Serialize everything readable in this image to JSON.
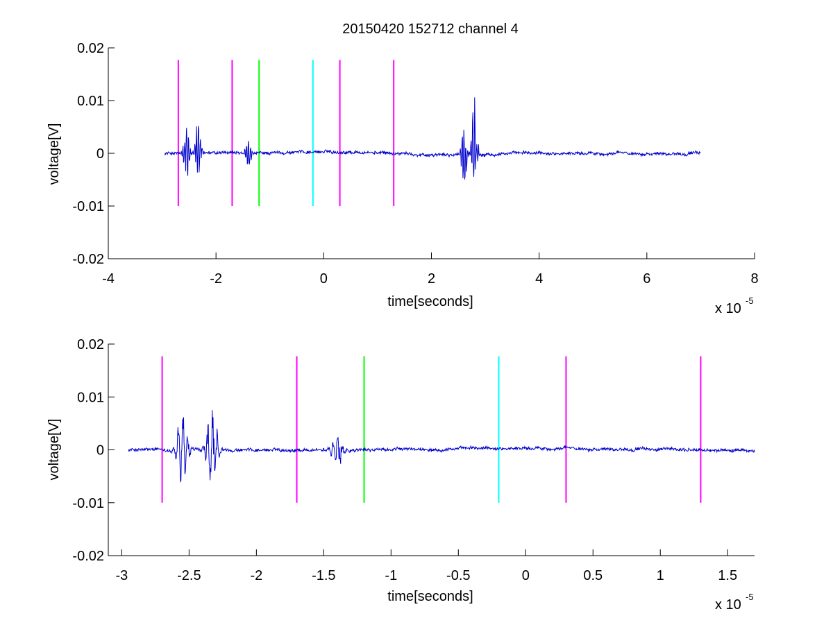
{
  "figure": {
    "title": "20150420 152712 channel 4",
    "background": "#ffffff"
  },
  "chart_data": [
    {
      "type": "line",
      "title": "20150420 152712 channel 4",
      "xlabel": "time[seconds]",
      "ylabel": "voltage[V]",
      "x_exponent_base": "x 10",
      "x_exponent_power": "-5",
      "xlim": [
        -4,
        8
      ],
      "ylim": [
        -0.02,
        0.02
      ],
      "xticks": [
        -4,
        -2,
        0,
        2,
        4,
        6,
        8
      ],
      "xtick_labels": [
        "-4",
        "-2",
        "0",
        "2",
        "4",
        "6",
        "8"
      ],
      "yticks": [
        -0.02,
        -0.01,
        0,
        0.01,
        0.02
      ],
      "ytick_labels": [
        "-0.02",
        "-0.01",
        "0",
        "0.01",
        "0.02"
      ],
      "grid": false,
      "box": false,
      "signal": {
        "color": "#0000cc",
        "x_range": [
          -2.95,
          7.0
        ],
        "baseline": 0,
        "noise_amplitude": 0.0004,
        "bursts": [
          {
            "x": -2.55,
            "peak_pos": 0.0073,
            "peak_neg": -0.0072
          },
          {
            "x": -2.33,
            "peak_pos": 0.0078,
            "peak_neg": -0.0068
          },
          {
            "x": -1.4,
            "peak_pos": 0.0025,
            "peak_neg": -0.004
          },
          {
            "x": 2.6,
            "peak_pos": 0.0073,
            "peak_neg": -0.0093
          },
          {
            "x": 2.8,
            "peak_pos": 0.0162,
            "peak_neg": -0.0055
          }
        ]
      },
      "markers": [
        {
          "x": -2.7,
          "y0": -0.01,
          "y1": 0.0177,
          "color": "#ff00ff"
        },
        {
          "x": -1.7,
          "y0": -0.01,
          "y1": 0.0177,
          "color": "#ff00ff"
        },
        {
          "x": -1.2,
          "y0": -0.01,
          "y1": 0.0177,
          "color": "#00ff00"
        },
        {
          "x": -0.2,
          "y0": -0.01,
          "y1": 0.0177,
          "color": "#00ffff"
        },
        {
          "x": 0.3,
          "y0": -0.01,
          "y1": 0.0177,
          "color": "#ff00ff"
        },
        {
          "x": 1.3,
          "y0": -0.01,
          "y1": 0.0177,
          "color": "#ff00ff"
        }
      ]
    },
    {
      "type": "line",
      "title": "",
      "xlabel": "time[seconds]",
      "ylabel": "voltage[V]",
      "x_exponent_base": "x 10",
      "x_exponent_power": "-5",
      "xlim": [
        -3.1,
        1.7
      ],
      "ylim": [
        -0.02,
        0.02
      ],
      "xticks": [
        -3,
        -2.5,
        -2,
        -1.5,
        -1,
        -0.5,
        0,
        0.5,
        1,
        1.5
      ],
      "xtick_labels": [
        "-3",
        "-2.5",
        "-2",
        "-1.5",
        "-1",
        "-0.5",
        "0",
        "0.5",
        "1",
        "1.5"
      ],
      "yticks": [
        -0.02,
        -0.01,
        0,
        0.01,
        0.02
      ],
      "ytick_labels": [
        "-0.02",
        "-0.01",
        "0",
        "0.01",
        "0.02"
      ],
      "grid": false,
      "box": false,
      "signal": {
        "color": "#0000cc",
        "x_range": [
          -2.95,
          1.7
        ],
        "baseline": 0,
        "noise_amplitude": 0.0004,
        "bursts": [
          {
            "x": -2.55,
            "peak_pos": 0.0073,
            "peak_neg": -0.0072
          },
          {
            "x": -2.33,
            "peak_pos": 0.0078,
            "peak_neg": -0.0068
          },
          {
            "x": -1.4,
            "peak_pos": 0.0025,
            "peak_neg": -0.004
          }
        ]
      },
      "markers": [
        {
          "x": -2.7,
          "y0": -0.01,
          "y1": 0.0177,
          "color": "#ff00ff"
        },
        {
          "x": -1.7,
          "y0": -0.01,
          "y1": 0.0177,
          "color": "#ff00ff"
        },
        {
          "x": -1.2,
          "y0": -0.01,
          "y1": 0.0177,
          "color": "#00ff00"
        },
        {
          "x": -0.2,
          "y0": -0.01,
          "y1": 0.0177,
          "color": "#00ffff"
        },
        {
          "x": 0.3,
          "y0": -0.01,
          "y1": 0.0177,
          "color": "#ff00ff"
        },
        {
          "x": 1.3,
          "y0": -0.01,
          "y1": 0.0177,
          "color": "#ff00ff"
        }
      ]
    }
  ]
}
